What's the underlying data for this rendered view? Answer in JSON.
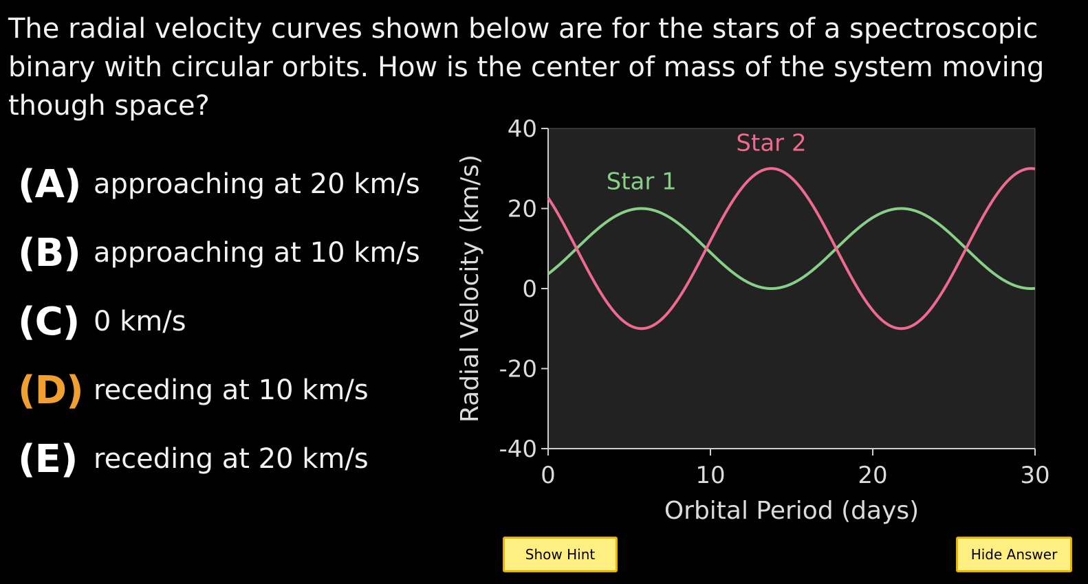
{
  "question": "The radial velocity curves shown below are for the stars of a spectroscopic binary with circular orbits. How is the center of mass of the system moving though space?",
  "choices": [
    {
      "letter": "(A)",
      "text": "approaching at 20 km/s"
    },
    {
      "letter": "(B)",
      "text": "approaching at 10 km/s"
    },
    {
      "letter": "(C)",
      "text": "0 km/s"
    },
    {
      "letter": "(D)",
      "text": "receding at 10 km/s"
    },
    {
      "letter": "(E)",
      "text": "receding at 20 km/s"
    }
  ],
  "highlighted_choice": "(D)",
  "colors": {
    "background": "#000000",
    "plot_background": "#222222",
    "star1": "#88d088",
    "star2": "#ee6a90",
    "highlight": "#f0a030",
    "button_fill": "#ffef82",
    "button_border": "#e8b400"
  },
  "buttons": {
    "hint": "Show Hint",
    "answer": "Hide Answer"
  },
  "chart_data": {
    "type": "line",
    "xlabel": "Orbital Period (days)",
    "ylabel": "Radial Velocity (km/s)",
    "xlim": [
      0,
      30
    ],
    "ylim": [
      -40,
      40
    ],
    "xticks": [
      0,
      10,
      20,
      30
    ],
    "yticks": [
      40,
      20,
      0,
      -20,
      -40
    ],
    "grid": false,
    "series": [
      {
        "name": "Star 1",
        "color": "#88d088",
        "function": "sinusoid",
        "mean": 10,
        "amplitude": 10,
        "period_days": 16,
        "peak_days": 5.75
      },
      {
        "name": "Star 2",
        "color": "#ee6a90",
        "function": "sinusoid",
        "mean": 10,
        "amplitude": 20,
        "period_days": 16,
        "peak_days": 13.75
      }
    ]
  }
}
